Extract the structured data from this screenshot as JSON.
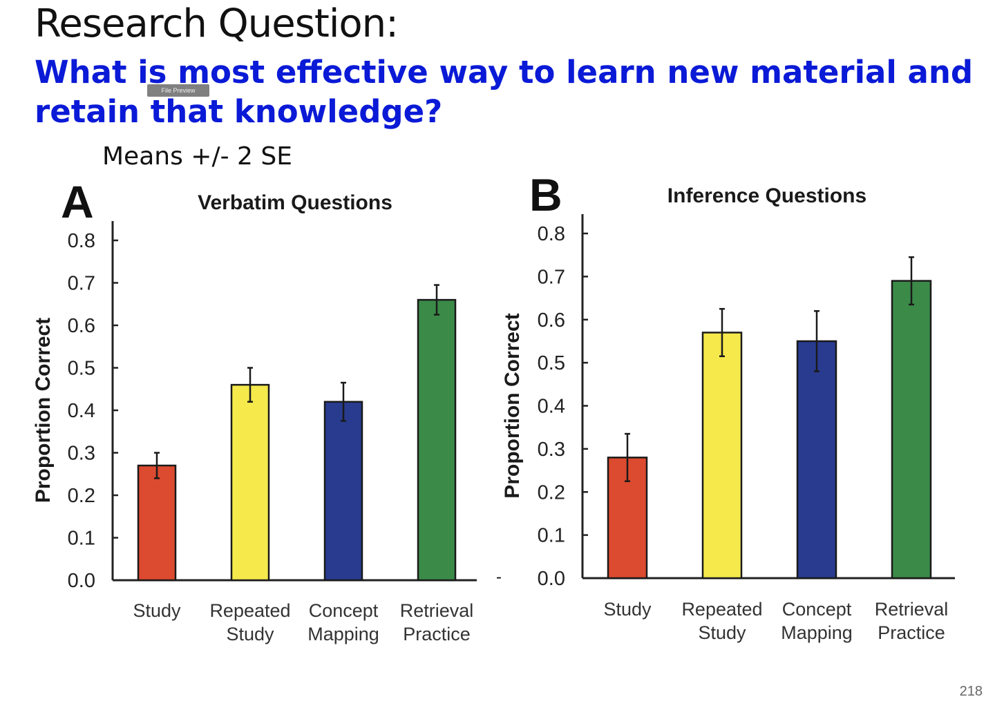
{
  "slide": {
    "title": "Research Question:",
    "question": "What is most effective way to learn new material and retain that knowledge?",
    "subtitle": "Means +/- 2 SE",
    "tooltip": "File Preview",
    "page_number": "218",
    "colors": {
      "question": "#0a1ad6"
    }
  },
  "chart_data": [
    {
      "type": "bar",
      "panel": "A",
      "title": "Verbatim Questions",
      "ylabel": "Proportion Correct",
      "xlabel": "",
      "ylim": [
        0.0,
        0.8
      ],
      "yticks": [
        "0.0",
        "0.1",
        "0.2",
        "0.3",
        "0.4",
        "0.5",
        "0.6",
        "0.7",
        "0.8"
      ],
      "categories": [
        [
          "Study"
        ],
        [
          "Repeated",
          "Study"
        ],
        [
          "Concept",
          "Mapping"
        ],
        [
          "Retrieval",
          "Practice"
        ]
      ],
      "values": [
        0.27,
        0.46,
        0.42,
        0.66
      ],
      "errors": [
        0.03,
        0.04,
        0.045,
        0.035
      ],
      "colors": [
        "#dc4a30",
        "#f5e94c",
        "#283b8f",
        "#3b8a48"
      ],
      "grid": false
    },
    {
      "type": "bar",
      "panel": "B",
      "title": "Inference Questions",
      "ylabel": "Proportion Correct",
      "xlabel": "",
      "ylim": [
        0.0,
        0.8
      ],
      "yticks": [
        "0.0",
        "0.1",
        "0.2",
        "0.3",
        "0.4",
        "0.5",
        "0.6",
        "0.7",
        "0.8"
      ],
      "categories": [
        [
          "Study"
        ],
        [
          "Repeated",
          "Study"
        ],
        [
          "Concept",
          "Mapping"
        ],
        [
          "Retrieval",
          "Practice"
        ]
      ],
      "values": [
        0.28,
        0.57,
        0.55,
        0.69
      ],
      "errors": [
        0.055,
        0.055,
        0.07,
        0.055
      ],
      "colors": [
        "#dc4a30",
        "#f5e94c",
        "#283b8f",
        "#3b8a48"
      ],
      "grid": false
    }
  ]
}
